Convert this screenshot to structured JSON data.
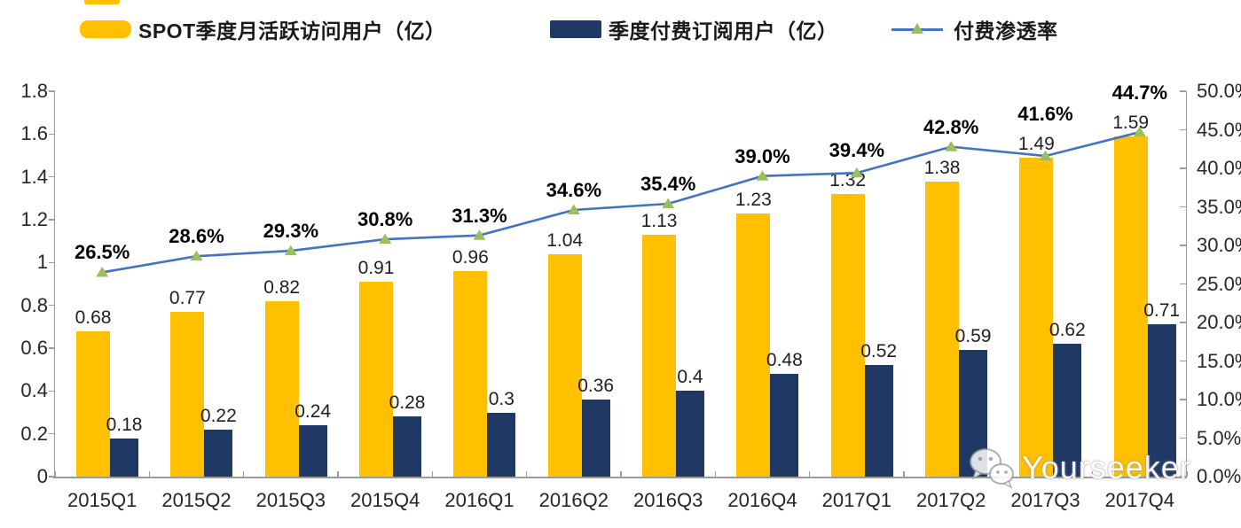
{
  "legend": [
    {
      "label": "SPOT季度月活跃访问用户（亿）",
      "type": "bar",
      "color": "#FFC000"
    },
    {
      "label": "季度付费订阅用户（亿）",
      "type": "bar",
      "color": "#1F3864"
    },
    {
      "label": "付费渗透率",
      "type": "line",
      "color": "#4472C4",
      "marker_color": "#9CBF5C"
    }
  ],
  "chart_data": {
    "type": "bar",
    "subtype": "grouped-bars-with-line",
    "categories": [
      "2015Q1",
      "2015Q2",
      "2015Q3",
      "2015Q4",
      "2016Q1",
      "2016Q2",
      "2016Q3",
      "2016Q4",
      "2017Q1",
      "2017Q2",
      "2017Q3",
      "2017Q4"
    ],
    "series": [
      {
        "name": "SPOT季度月活跃访问用户（亿）",
        "type": "bar",
        "axis": "left",
        "color": "#FFC000",
        "values": [
          0.68,
          0.77,
          0.82,
          0.91,
          0.96,
          1.04,
          1.13,
          1.23,
          1.32,
          1.38,
          1.49,
          1.59
        ],
        "labels": [
          "0.68",
          "0.77",
          "0.82",
          "0.91",
          "0.96",
          "1.04",
          "1.13",
          "1.23",
          "1.32",
          "1.38",
          "1.49",
          "1.59"
        ]
      },
      {
        "name": "季度付费订阅用户（亿）",
        "type": "bar",
        "axis": "left",
        "color": "#1F3864",
        "values": [
          0.18,
          0.22,
          0.24,
          0.28,
          0.3,
          0.36,
          0.4,
          0.48,
          0.52,
          0.59,
          0.62,
          0.71
        ],
        "labels": [
          "0.18",
          "0.22",
          "0.24",
          "0.28",
          "0.3",
          "0.36",
          "0.4",
          "0.48",
          "0.52",
          "0.59",
          "0.62",
          "0.71"
        ]
      },
      {
        "name": "付费渗透率",
        "type": "line",
        "axis": "right",
        "color": "#4472C4",
        "marker": "triangle",
        "marker_color": "#9CBF5C",
        "values": [
          26.5,
          28.6,
          29.3,
          30.8,
          31.3,
          34.6,
          35.4,
          39.0,
          39.4,
          42.8,
          41.6,
          44.7
        ],
        "labels": [
          "26.5%",
          "28.6%",
          "29.3%",
          "30.8%",
          "31.3%",
          "34.6%",
          "35.4%",
          "39.0%",
          "39.4%",
          "42.8%",
          "41.6%",
          "44.7%"
        ]
      }
    ],
    "left_axis": {
      "min": 0,
      "max": 1.8,
      "step": 0.2,
      "ticks": [
        "0",
        "0.2",
        "0.4",
        "0.6",
        "0.8",
        "1",
        "1.2",
        "1.4",
        "1.6",
        "1.8"
      ]
    },
    "right_axis": {
      "min": 0,
      "max": 50,
      "step": 5,
      "ticks": [
        "0.0%",
        "5.0%",
        "10.0%",
        "15.0%",
        "20.0%",
        "25.0%",
        "30.0%",
        "35.0%",
        "40.0%",
        "45.0%",
        "50.0%"
      ]
    },
    "grid": false,
    "legend_position": "top",
    "title": "",
    "xlabel": "",
    "ylabel": ""
  },
  "watermark": {
    "text": "Yourseeker",
    "icon": "wechat-icon"
  }
}
